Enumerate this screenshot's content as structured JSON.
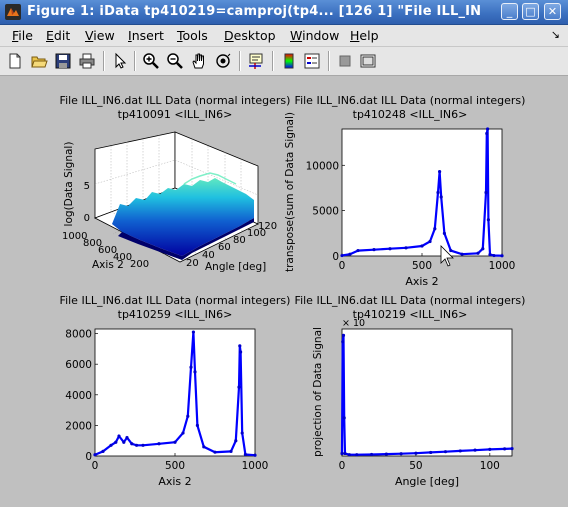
{
  "window": {
    "title": "Figure 1: iData tp410219=camproj(tp4... [126     1] \"File ILL_IN",
    "minimize": "_",
    "maximize": "□",
    "close": "✕"
  },
  "menu": {
    "items": [
      {
        "label": "File",
        "u": "F",
        "rest": "ile"
      },
      {
        "label": "Edit",
        "u": "E",
        "rest": "dit"
      },
      {
        "label": "View",
        "u": "V",
        "rest": "iew"
      },
      {
        "label": "Insert",
        "u": "I",
        "rest": "nsert"
      },
      {
        "label": "Tools",
        "u": "T",
        "rest": "ools"
      },
      {
        "label": "Desktop",
        "u": "D",
        "rest": "esktop"
      },
      {
        "label": "Window",
        "u": "W",
        "rest": "indow"
      },
      {
        "label": "Help",
        "u": "H",
        "rest": "elp"
      }
    ],
    "arrow": "↘"
  },
  "toolbar": {
    "icons": [
      "new-figure-icon",
      "open-file-icon",
      "save-icon",
      "print-icon",
      "pointer-icon",
      "zoom-in-icon",
      "zoom-out-icon",
      "pan-hand-icon",
      "rotate-3d-icon",
      "data-cursor-icon",
      "colorbar-icon",
      "legend-icon",
      "hide-plot-tools-icon",
      "show-plot-tools-icon"
    ]
  },
  "chart_data": [
    {
      "type": "surface",
      "title": "File ILL_IN6.dat ILL Data (normal integers)",
      "subtitle": "tp410091 <ILL_IN6>",
      "xlabel": "Angle [deg]",
      "ylabel": "Axis 2",
      "zlabel": "log(Data Signal)",
      "x_ticks": [
        "20",
        "40",
        "60",
        "80",
        "100",
        "120"
      ],
      "y_ticks": [
        "200",
        "400",
        "600",
        "800",
        "1000"
      ],
      "z_ticks": [
        "0",
        "5"
      ],
      "grid": true
    },
    {
      "type": "line",
      "title": "File ILL_IN6.dat ILL Data (normal integers)",
      "subtitle": "tp410248 <ILL_IN6>",
      "xlabel": "Axis 2",
      "ylabel": "transpose(sum of Data Signal)",
      "xlim": [
        0,
        1000
      ],
      "ylim": [
        0,
        14000
      ],
      "x_ticks": [
        "0",
        "500",
        "1000"
      ],
      "y_ticks": [
        "0",
        "5000",
        "10000"
      ],
      "series": [
        {
          "x": [
            0,
            50,
            100,
            200,
            300,
            400,
            500,
            550,
            580,
            600,
            610,
            620,
            640,
            680,
            750,
            850,
            880,
            900,
            905,
            910,
            915,
            925,
            950,
            1000
          ],
          "y": [
            50,
            200,
            600,
            700,
            800,
            900,
            1100,
            1600,
            3000,
            7000,
            9300,
            6500,
            2500,
            600,
            200,
            300,
            800,
            7000,
            13500,
            14000,
            4000,
            150,
            50,
            30
          ]
        }
      ]
    },
    {
      "type": "line",
      "title": "File ILL_IN6.dat ILL Data (normal integers)",
      "subtitle": "tp410259 <ILL_IN6>",
      "xlabel": "Axis 2",
      "ylabel": "",
      "xlim": [
        0,
        1000
      ],
      "ylim": [
        0,
        8300
      ],
      "x_ticks": [
        "0",
        "500",
        "1000"
      ],
      "y_ticks": [
        "0",
        "2000",
        "4000",
        "6000",
        "8000"
      ],
      "series": [
        {
          "x": [
            0,
            50,
            100,
            130,
            150,
            180,
            200,
            230,
            260,
            300,
            400,
            500,
            550,
            580,
            600,
            615,
            625,
            640,
            680,
            750,
            850,
            880,
            900,
            905,
            910,
            920,
            940,
            1000
          ],
          "y": [
            80,
            300,
            700,
            900,
            1300,
            900,
            1200,
            800,
            700,
            700,
            800,
            900,
            1500,
            2600,
            5800,
            8100,
            5500,
            2000,
            600,
            250,
            300,
            1000,
            4500,
            7200,
            6800,
            1500,
            100,
            50
          ]
        }
      ]
    },
    {
      "type": "line",
      "title": "File ILL_IN6.dat ILL Data (normal integers)",
      "subtitle": "tp410219 <ILL_IN6>",
      "xlabel": "Angle [deg]",
      "ylabel": "projection of Data Signal",
      "exponent_label": "× 10",
      "xlim": [
        0,
        115
      ],
      "ylim": [
        0,
        1
      ],
      "x_ticks": [
        "0",
        "50",
        "100"
      ],
      "series": [
        {
          "x": [
            0,
            0.5,
            1,
            1.5,
            2,
            5,
            10,
            20,
            30,
            40,
            50,
            60,
            70,
            80,
            90,
            100,
            110,
            115
          ],
          "y": [
            0.02,
            0.9,
            0.95,
            0.3,
            0.02,
            0.01,
            0.01,
            0.012,
            0.015,
            0.018,
            0.022,
            0.028,
            0.034,
            0.04,
            0.046,
            0.052,
            0.056,
            0.058
          ]
        }
      ]
    }
  ]
}
